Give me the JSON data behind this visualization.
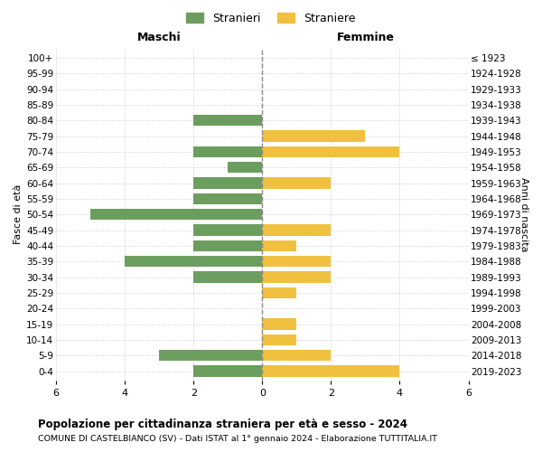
{
  "age_groups": [
    "0-4",
    "5-9",
    "10-14",
    "15-19",
    "20-24",
    "25-29",
    "30-34",
    "35-39",
    "40-44",
    "45-49",
    "50-54",
    "55-59",
    "60-64",
    "65-69",
    "70-74",
    "75-79",
    "80-84",
    "85-89",
    "90-94",
    "95-99",
    "100+"
  ],
  "birth_years": [
    "2019-2023",
    "2014-2018",
    "2009-2013",
    "2004-2008",
    "1999-2003",
    "1994-1998",
    "1989-1993",
    "1984-1988",
    "1979-1983",
    "1974-1978",
    "1969-1973",
    "1964-1968",
    "1959-1963",
    "1954-1958",
    "1949-1953",
    "1944-1948",
    "1939-1943",
    "1934-1938",
    "1929-1933",
    "1924-1928",
    "≤ 1923"
  ],
  "maschi": [
    2,
    3,
    0,
    0,
    0,
    0,
    2,
    4,
    2,
    2,
    5,
    2,
    2,
    1,
    2,
    0,
    2,
    0,
    0,
    0,
    0
  ],
  "femmine": [
    4,
    2,
    1,
    1,
    0,
    1,
    2,
    2,
    1,
    2,
    0,
    0,
    2,
    0,
    4,
    3,
    0,
    0,
    0,
    0,
    0
  ],
  "color_maschi": "#6b9e5e",
  "color_femmine": "#f0c040",
  "background_color": "#ffffff",
  "grid_color": "#cccccc",
  "title": "Popolazione per cittadinanza straniera per età e sesso - 2024",
  "subtitle": "COMUNE DI CASTELBIANCO (SV) - Dati ISTAT al 1° gennaio 2024 - Elaborazione TUTTITALIA.IT",
  "xlabel_left": "Maschi",
  "xlabel_right": "Femmine",
  "ylabel_left": "Fasce di età",
  "ylabel_right": "Anni di nascita",
  "legend_stranieri": "Stranieri",
  "legend_straniere": "Straniere",
  "xlim": 6
}
